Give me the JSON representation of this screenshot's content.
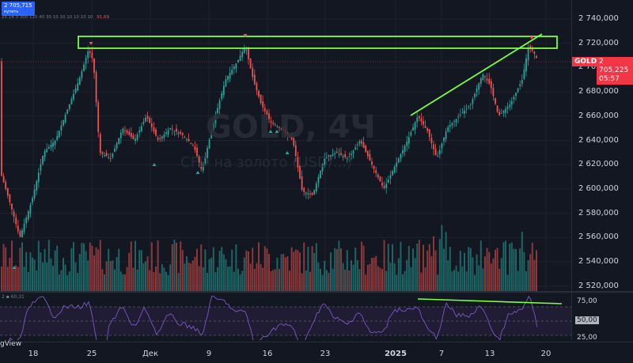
{
  "header": {
    "price_box": "2 705,715",
    "price_box_sub": "купить",
    "indicator_row": "25 14 3 300 110 40 30 10 10 10 10 10 10",
    "indicator_alert": "91,69"
  },
  "watermark": {
    "title": "GOLD, 4Ч",
    "subtitle": "CFD на золото (USD/...)"
  },
  "symbol": {
    "tag": "GOLD",
    "price": "2 705,225",
    "countdown": "05:57"
  },
  "price_axis": [
    "2 740,000",
    "2 720,000",
    "2 700,000",
    "2 680,000",
    "2 660,000",
    "2 640,000",
    "2 620,000",
    "2 600,000",
    "2 580,000",
    "2 560,000",
    "2 540,000",
    "2 520,000"
  ],
  "rsi": {
    "label": "2 ▪ 60,31",
    "ticks": [
      "75,00",
      "50,00",
      "25,00"
    ]
  },
  "time_axis": [
    "18",
    "25",
    "Дек",
    "9",
    "16",
    "23",
    "2025",
    "7",
    "13",
    "20"
  ],
  "branding": "gView",
  "colors": {
    "up": "#26a69a",
    "down": "#ef5350",
    "annotation": "#7cff3a",
    "rsi": "#7e57c2"
  }
}
